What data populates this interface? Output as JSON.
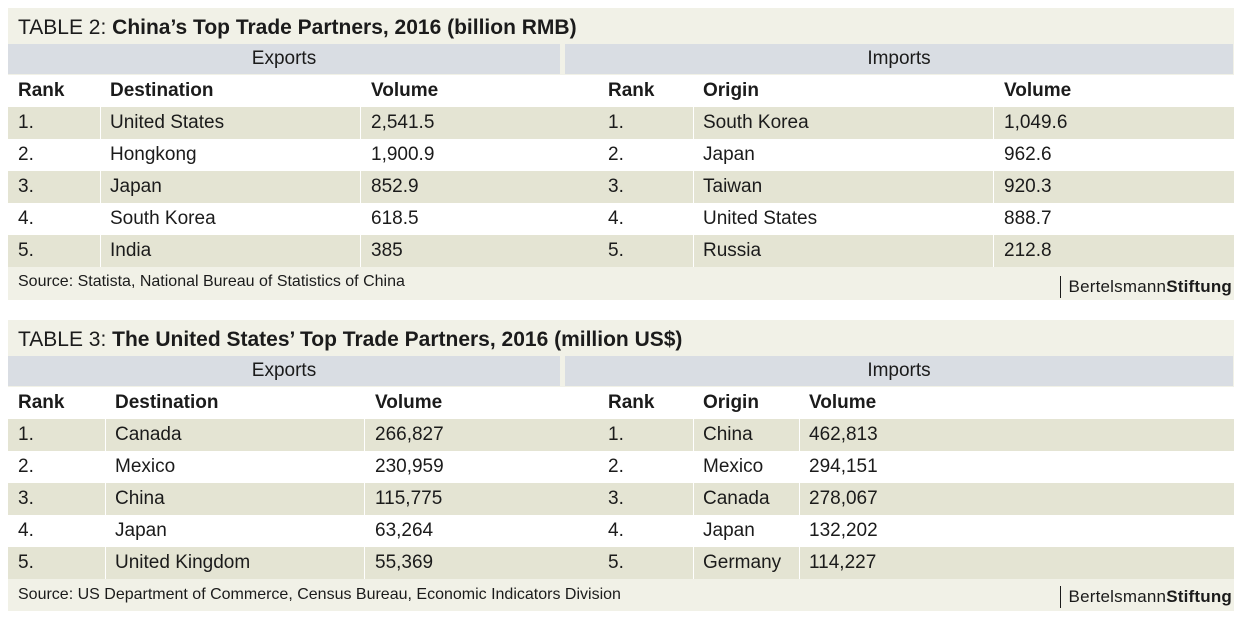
{
  "table2": {
    "title_prefix": "TABLE 2: ",
    "title_bold": "China’s Top Trade Partners, 2016 (billion RMB)",
    "exports_header": "Exports",
    "imports_header": "Imports",
    "col_rank": "Rank",
    "col_destination": "Destination",
    "col_origin": "Origin",
    "col_volume": "Volume",
    "rows": [
      {
        "rank": "1.",
        "destination": "United States",
        "export_volume": "2,541.5",
        "origin": "South Korea",
        "import_volume": "1,049.6"
      },
      {
        "rank": "2.",
        "destination": "Hongkong",
        "export_volume": "1,900.9",
        "origin": "Japan",
        "import_volume": "962.6"
      },
      {
        "rank": "3.",
        "destination": "Japan",
        "export_volume": "852.9",
        "origin": "Taiwan",
        "import_volume": "920.3"
      },
      {
        "rank": "4.",
        "destination": "South Korea",
        "export_volume": "618.5",
        "origin": "United States",
        "import_volume": "888.7"
      },
      {
        "rank": "5.",
        "destination": "India",
        "export_volume": "385",
        "origin": "Russia",
        "import_volume": "212.8"
      }
    ],
    "source": "Source: Statista, National Bureau of Statistics of China",
    "brand_regular": "Bertelsmann",
    "brand_bold": "Stiftung"
  },
  "table3": {
    "title_prefix": "TABLE 3: ",
    "title_bold": "The United States’ Top Trade Partners, 2016 (million US$)",
    "exports_header": "Exports",
    "imports_header": "Imports",
    "col_rank": "Rank",
    "col_destination": "Destination",
    "col_origin": "Origin",
    "col_volume": "Volume",
    "rows": [
      {
        "rank": "1.",
        "destination": "Canada",
        "export_volume": "266,827",
        "origin": "China",
        "import_volume": "462,813"
      },
      {
        "rank": "2.",
        "destination": "Mexico",
        "export_volume": "230,959",
        "origin": "Mexico",
        "import_volume": "294,151"
      },
      {
        "rank": "3.",
        "destination": "China",
        "export_volume": "115,775",
        "origin": "Canada",
        "import_volume": "278,067"
      },
      {
        "rank": "4.",
        "destination": "Japan",
        "export_volume": "63,264",
        "origin": "Japan",
        "import_volume": "132,202"
      },
      {
        "rank": "5.",
        "destination": "United Kingdom",
        "export_volume": "55,369",
        "origin": "Germany",
        "import_volume": "114,227"
      }
    ],
    "source": "Source: US Department of Commerce, Census Bureau, Economic Indicators Division",
    "brand_regular": "Bertelsmann",
    "brand_bold": "Stiftung"
  },
  "colors": {
    "panel_background": "#f1f1e7",
    "group_header_background": "#d9dde3",
    "shaded_row": "#e4e4d3",
    "plain_row": "#ffffff",
    "text": "#1b1b1b"
  }
}
